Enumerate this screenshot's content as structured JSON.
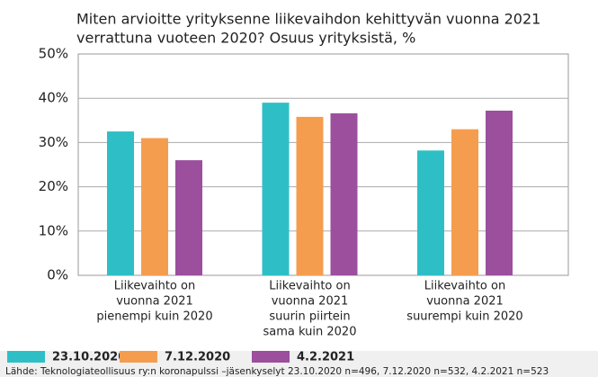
{
  "chart_data": {
    "type": "bar",
    "title": [
      "Miten arvioitte yrityksenne liikevaihdon kehittyvän vuonna 2021",
      "verrattuna vuoteen 2020? Osuus yrityksistä, %"
    ],
    "categories": [
      [
        "Liikevaihto on",
        "vuonna 2021",
        "pienempi kuin 2020"
      ],
      [
        "Liikevaihto on",
        "vuonna 2021",
        "suurin piirtein",
        "sama kuin 2020"
      ],
      [
        "Liikevaihto on",
        "vuonna 2021",
        "suurempi kuin 2020"
      ]
    ],
    "series": [
      {
        "name": "23.10.2020",
        "color": "#2ebfc6",
        "values": [
          32.5,
          39,
          28.2
        ]
      },
      {
        "name": "7.12.2020",
        "color": "#f59d4e",
        "values": [
          31,
          35.8,
          33
        ]
      },
      {
        "name": "4.2.2021",
        "color": "#9b4f9d",
        "values": [
          26,
          36.6,
          37.2
        ]
      }
    ],
    "ylim": [
      0,
      50
    ],
    "yticks": [
      {
        "value": 0,
        "label": "0%"
      },
      {
        "value": 10,
        "label": "10%"
      },
      {
        "value": 20,
        "label": "20%"
      },
      {
        "value": 30,
        "label": "30%"
      },
      {
        "value": 40,
        "label": "40%"
      },
      {
        "value": 50,
        "label": "50%"
      }
    ],
    "source": "Lähde: Teknologiateollisuus ry:n koronapulssi –jäsenkyselyt 23.10.2020 n=496, 7.12.2020 n=532, 4.2.2021 n=523"
  }
}
